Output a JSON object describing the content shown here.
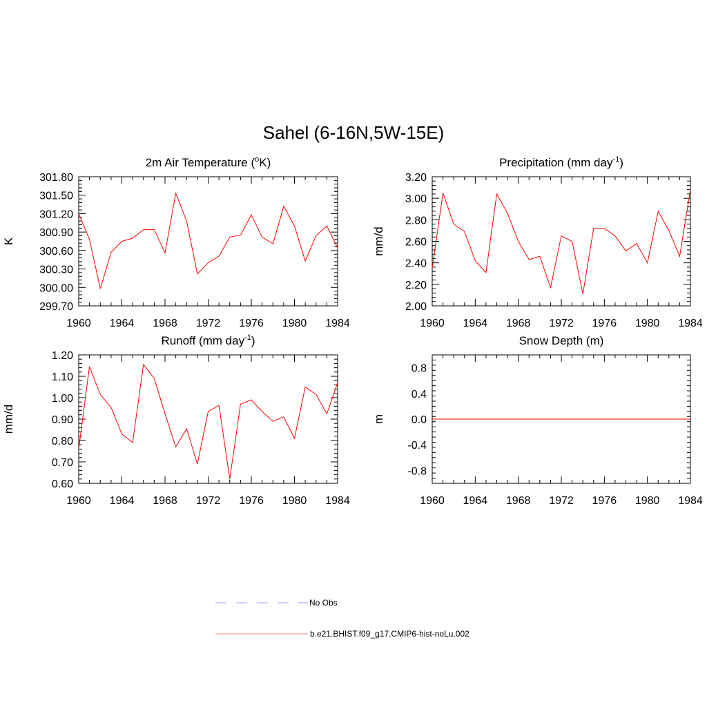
{
  "title": "Sahel (6-16N,5W-15E)",
  "colors": {
    "model_line": "#ff0000",
    "obs_line": "#9a9aff",
    "axis": "#000000"
  },
  "legend": [
    {
      "label": "No Obs",
      "style": "dashed",
      "color": "#9a9aff"
    },
    {
      "label": "b.e21.BHIST.f09_g17.CMIP6-hist-noLu.002",
      "style": "solid",
      "color": "#ff8080"
    }
  ],
  "chart_data": [
    {
      "type": "line",
      "title": {
        "text": "2m Air Temperature (",
        "sup_before": "o",
        "rest": "K)"
      },
      "ylabel": "K",
      "xlim": [
        1960,
        1984
      ],
      "ylim": [
        299.7,
        301.8
      ],
      "x_ticks": [
        "1960",
        "1964",
        "1968",
        "1972",
        "1976",
        "1980",
        "1984"
      ],
      "y_ticks": [
        "299.70",
        "300.00",
        "300.30",
        "300.60",
        "300.90",
        "301.20",
        "301.50",
        "301.80"
      ],
      "series": [
        {
          "x": [
            1960,
            1961,
            1962,
            1963,
            1964,
            1965,
            1966,
            1967,
            1968,
            1969,
            1970,
            1971,
            1972,
            1973,
            1974,
            1975,
            1976,
            1977,
            1978,
            1979,
            1980,
            1981,
            1982,
            1983,
            1984
          ],
          "values": [
            301.2,
            300.78,
            299.98,
            300.57,
            300.75,
            300.8,
            300.94,
            300.94,
            300.56,
            301.53,
            301.08,
            300.22,
            300.4,
            300.51,
            300.82,
            300.85,
            301.18,
            300.82,
            300.71,
            301.32,
            301.0,
            300.43,
            300.84,
            301.0,
            300.64
          ]
        }
      ]
    },
    {
      "type": "line",
      "title": {
        "text": "Precipitation (mm day",
        "sup": "-1",
        "rest": ")"
      },
      "ylabel": "mm/d",
      "xlim": [
        1960,
        1984
      ],
      "ylim": [
        2.0,
        3.2
      ],
      "x_ticks": [
        "1960",
        "1964",
        "1968",
        "1972",
        "1976",
        "1980",
        "1984"
      ],
      "y_ticks": [
        "2.00",
        "2.20",
        "2.40",
        "2.60",
        "2.80",
        "3.00",
        "3.20"
      ],
      "series": [
        {
          "x": [
            1960,
            1961,
            1962,
            1963,
            1964,
            1965,
            1966,
            1967,
            1968,
            1969,
            1970,
            1971,
            1972,
            1973,
            1974,
            1975,
            1976,
            1977,
            1978,
            1979,
            1980,
            1981,
            1982,
            1983,
            1984
          ],
          "values": [
            2.35,
            3.05,
            2.76,
            2.69,
            2.42,
            2.31,
            3.04,
            2.86,
            2.6,
            2.43,
            2.46,
            2.17,
            2.65,
            2.6,
            2.11,
            2.72,
            2.72,
            2.65,
            2.51,
            2.58,
            2.4,
            2.88,
            2.7,
            2.46,
            3.08
          ]
        }
      ]
    },
    {
      "type": "line",
      "title": {
        "text": "Runoff (mm day",
        "sup": "-1",
        "rest": ")"
      },
      "ylabel": "mm/d",
      "xlim": [
        1960,
        1984
      ],
      "ylim": [
        0.6,
        1.2
      ],
      "x_ticks": [
        "1960",
        "1964",
        "1968",
        "1972",
        "1976",
        "1980",
        "1984"
      ],
      "y_ticks": [
        "0.60",
        "0.70",
        "0.80",
        "0.90",
        "1.00",
        "1.10",
        "1.20"
      ],
      "series": [
        {
          "x": [
            1960,
            1961,
            1962,
            1963,
            1964,
            1965,
            1966,
            1967,
            1968,
            1969,
            1970,
            1971,
            1972,
            1973,
            1974,
            1975,
            1976,
            1977,
            1978,
            1979,
            1980,
            1981,
            1982,
            1983,
            1984
          ],
          "values": [
            0.76,
            1.145,
            1.015,
            0.955,
            0.83,
            0.79,
            1.155,
            1.09,
            0.925,
            0.77,
            0.855,
            0.69,
            0.935,
            0.965,
            0.62,
            0.97,
            0.99,
            0.935,
            0.89,
            0.91,
            0.81,
            1.05,
            1.015,
            0.925,
            1.07
          ]
        }
      ]
    },
    {
      "type": "line",
      "title": {
        "text": "Snow Depth (m)"
      },
      "ylabel": "m",
      "xlim": [
        1960,
        1984
      ],
      "ylim": [
        -1.0,
        1.0
      ],
      "x_ticks": [
        "1960",
        "1964",
        "1968",
        "1972",
        "1976",
        "1980",
        "1984"
      ],
      "y_ticks": [
        "-0.8",
        "-0.4",
        "0.0",
        "0.4",
        "0.8"
      ],
      "y_tick_values": [
        -0.8,
        -0.4,
        0.0,
        0.4,
        0.8
      ],
      "series": [
        {
          "x": [
            1960,
            1984
          ],
          "values": [
            0.0,
            0.0
          ]
        }
      ]
    }
  ]
}
